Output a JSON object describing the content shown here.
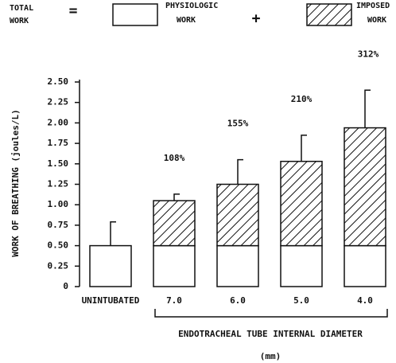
{
  "chart_data": {
    "type": "stacked-bar",
    "legend_title": "TOTAL WORK",
    "legend_operators": [
      "=",
      "+"
    ],
    "ylabel": "WORK OF BREATHING (joules/L)",
    "xlabel": "ENDOTRACHEAL TUBE INTERNAL DIAMETER",
    "xlabel_unit": "(mm)",
    "categories": [
      "UNINTUBATED",
      "7.0",
      "6.0",
      "5.0",
      "4.0"
    ],
    "series": [
      {
        "name": "PHYSIOLOGIC WORK",
        "color": "#ffffff",
        "pattern": "none",
        "values": [
          0.5,
          0.5,
          0.5,
          0.5,
          0.5
        ]
      },
      {
        "name": "IMPOSED WORK",
        "color": "#ffffff",
        "pattern": "hatch",
        "values": [
          null,
          0.55,
          0.75,
          1.03,
          1.44
        ]
      }
    ],
    "errors": [
      0.29,
      0.08,
      0.3,
      0.32,
      0.46
    ],
    "annotations": [
      "108%",
      "155%",
      "210%",
      "312%"
    ],
    "ylim": [
      0,
      2.5
    ],
    "yticks": [
      0,
      0.25,
      {
        "value": 0.5,
        "label": "0.50"
      },
      0.75,
      {
        "value": 1,
        "label": "1.00"
      },
      1.25,
      {
        "value": 1.5,
        "label": "1.50"
      },
      1.75,
      {
        "value": 2,
        "label": "2.00"
      },
      2.25,
      {
        "value": 2.5,
        "label": "2.50"
      }
    ],
    "grid": false
  }
}
